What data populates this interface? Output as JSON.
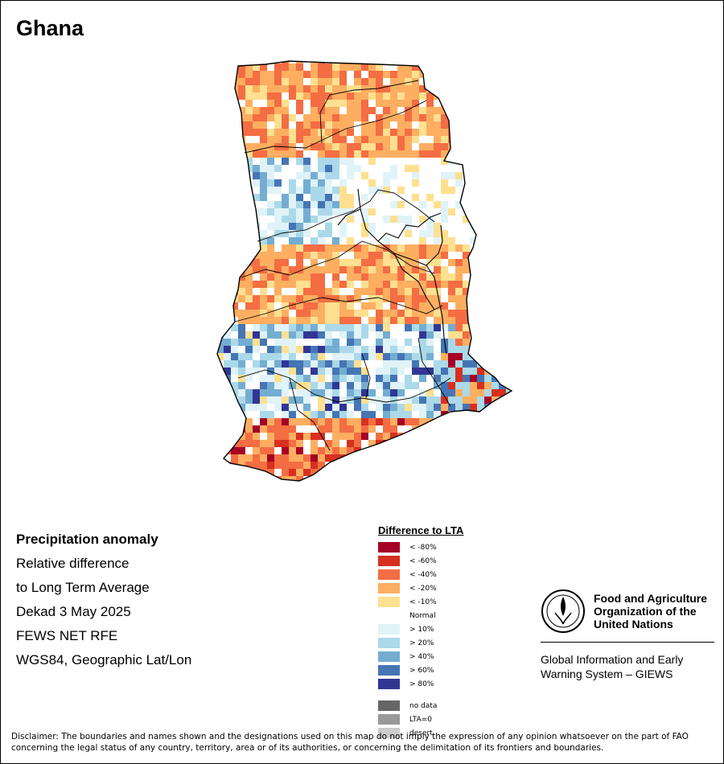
{
  "map": {
    "title": "Ghana",
    "subtitle_lines": [
      "Precipitation anomaly",
      "Relative difference",
      "to Long Term Average",
      "Dekad 3 May 2025",
      "FEWS NET RFE",
      "WGS84, Geographic Lat/Lon"
    ]
  },
  "legend": {
    "title": "Difference to LTA",
    "dry_classes": [
      {
        "label": "< -80%",
        "color": "#a50026"
      },
      {
        "label": "< -60%",
        "color": "#d7301f"
      },
      {
        "label": "< -40%",
        "color": "#f46d43"
      },
      {
        "label": "< -20%",
        "color": "#fdae61"
      },
      {
        "label": "< -10%",
        "color": "#fee090"
      }
    ],
    "normal_label": "Normal",
    "wet_classes": [
      {
        "label": "> 10%",
        "color": "#e0f3f8"
      },
      {
        "label": "> 20%",
        "color": "#abd9e9"
      },
      {
        "label": "> 40%",
        "color": "#74add1"
      },
      {
        "label": "> 60%",
        "color": "#4575b4"
      },
      {
        "label": "> 80%",
        "color": "#313695"
      }
    ],
    "special_classes": [
      {
        "label": "no data",
        "color": "#666666"
      },
      {
        "label": "LTA=0",
        "color": "#999999"
      },
      {
        "label": "desert",
        "color": "#cccccc"
      }
    ]
  },
  "organization": {
    "name_lines": [
      "Food and Agriculture",
      "Organization of the",
      "United Nations"
    ],
    "system_lines": [
      "Global Information and Early",
      "Warning System – GIEWS"
    ],
    "logo_text": "FAO"
  },
  "disclaimer": "Disclaimer: The boundaries and names shown and the designations used on this map do not imply the expression of any opinion whatsoever on the part of FAO concerning the legal status of any country, territory, area or of its authorities, or concerning the delimitation of its frontiers and boundaries."
}
